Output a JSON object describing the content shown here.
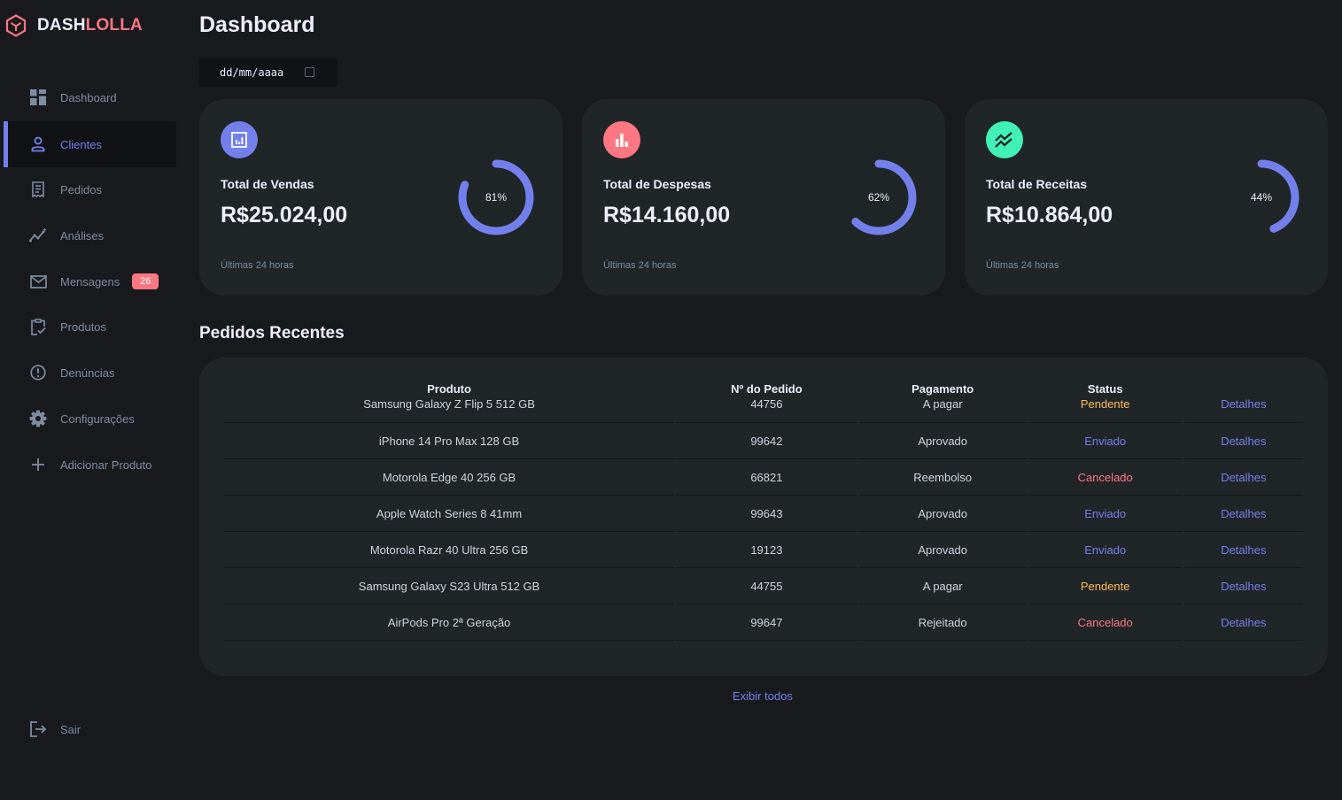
{
  "brand": {
    "part1": "DASH",
    "part2": "LOLLA"
  },
  "sidebar": {
    "items": [
      {
        "label": "Dashboard"
      },
      {
        "label": "Clientes"
      },
      {
        "label": "Pedidos"
      },
      {
        "label": "Análises"
      },
      {
        "label": "Mensagens",
        "badge": "26"
      },
      {
        "label": "Produtos"
      },
      {
        "label": "Denúncias"
      },
      {
        "label": "Configurações"
      },
      {
        "label": "Adicionar Produto"
      }
    ],
    "logout": "Sair"
  },
  "header": {
    "title": "Dashboard",
    "date_placeholder": "dd/mm/aaaa"
  },
  "cards": [
    {
      "title": "Total de Vendas",
      "value": "R$25.024,00",
      "percent": 81,
      "percent_label": "81%",
      "subtitle": "Últimas 24 horas",
      "icon": "analytics-icon",
      "icon_color": "#7380ec"
    },
    {
      "title": "Total de Despesas",
      "value": "R$14.160,00",
      "percent": 62,
      "percent_label": "62%",
      "subtitle": "Últimas 24 horas",
      "icon": "bar-chart-icon",
      "icon_color": "#ff7782"
    },
    {
      "title": "Total de Receitas",
      "value": "R$10.864,00",
      "percent": 44,
      "percent_label": "44%",
      "subtitle": "Últimas 24 horas",
      "icon": "stacked-line-chart-icon",
      "icon_color": "#41f1b6"
    }
  ],
  "orders": {
    "title": "Pedidos Recentes",
    "columns": [
      "Produto",
      "Nº do Pedido",
      "Pagamento",
      "Status",
      ""
    ],
    "rows": [
      {
        "product": "Samsung Galaxy Z Flip 5 512 GB",
        "number": "44756",
        "payment": "A pagar",
        "status": "Pendente",
        "action": "Detalhes"
      },
      {
        "product": "iPhone 14 Pro Max 128 GB",
        "number": "99642",
        "payment": "Aprovado",
        "status": "Enviado",
        "action": "Detalhes"
      },
      {
        "product": "Motorola Edge 40 256 GB",
        "number": "66821",
        "payment": "Reembolso",
        "status": "Cancelado",
        "action": "Detalhes"
      },
      {
        "product": "Apple Watch Series 8 41mm",
        "number": "99643",
        "payment": "Aprovado",
        "status": "Enviado",
        "action": "Detalhes"
      },
      {
        "product": "Motorola Razr 40 Ultra 256 GB",
        "number": "19123",
        "payment": "Aprovado",
        "status": "Enviado",
        "action": "Detalhes"
      },
      {
        "product": "Samsung Galaxy S23 Ultra 512 GB",
        "number": "44755",
        "payment": "A pagar",
        "status": "Pendente",
        "action": "Detalhes"
      },
      {
        "product": "AirPods Pro 2ª Geração",
        "number": "99647",
        "payment": "Rejeitado",
        "status": "Cancelado",
        "action": "Detalhes"
      }
    ],
    "show_all": "Exibir todos"
  },
  "colors": {
    "primary": "#7380ec",
    "danger": "#ff7782",
    "success": "#41f1b6",
    "warning": "#ffbb55",
    "background": "#181a1e",
    "card": "#202528"
  }
}
